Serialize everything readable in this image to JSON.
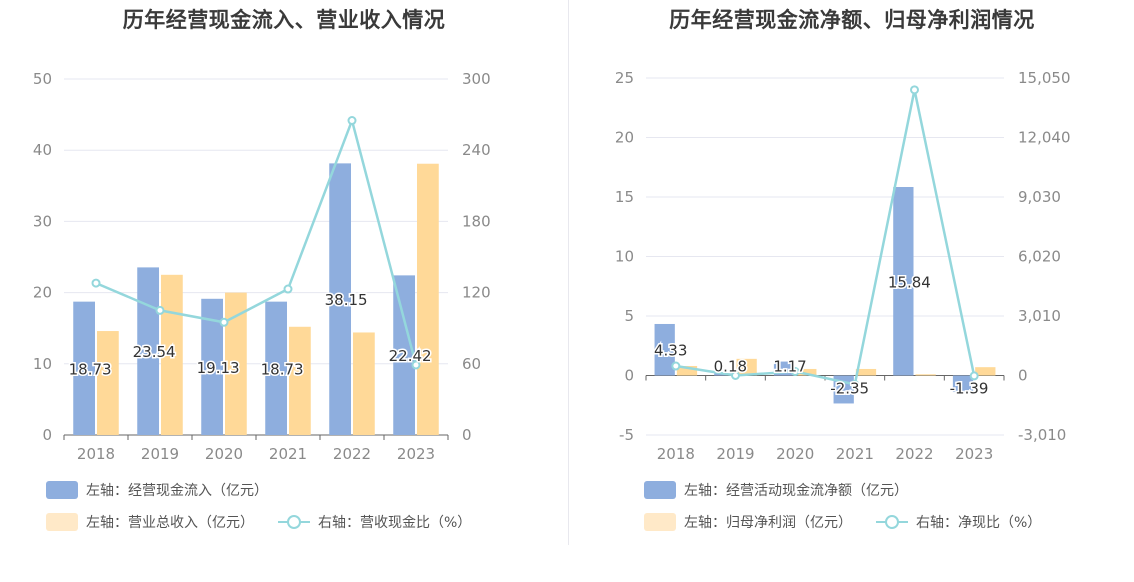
{
  "colors": {
    "bar_a": "#8eaede",
    "bar_b": "#ffd998",
    "line": "#94d7dc",
    "grid": "#e6e7f0",
    "axis_text": "#8a8a8a"
  },
  "chart_data": [
    {
      "type": "bar",
      "title": "历年经营现金流入、营业收入情况",
      "categories": [
        "2018",
        "2019",
        "2020",
        "2021",
        "2022",
        "2023"
      ],
      "left_axis": {
        "min": 0,
        "max": 50,
        "ticks": [
          "0",
          "10",
          "20",
          "30",
          "40",
          "50"
        ]
      },
      "right_axis": {
        "min": 0,
        "max": 300,
        "ticks": [
          "0",
          "60",
          "120",
          "180",
          "240",
          "300"
        ]
      },
      "series": [
        {
          "name": "左轴：经营现金流入（亿元）",
          "kind": "bar",
          "axis": "left",
          "values": [
            18.73,
            23.54,
            19.13,
            18.73,
            38.15,
            22.42
          ],
          "labels": [
            "18.73",
            "23.54",
            "19.13",
            "18.73",
            "38.15",
            "22.42"
          ]
        },
        {
          "name": "左轴：营业总收入（亿元）",
          "kind": "bar",
          "axis": "left",
          "values": [
            14.6,
            22.5,
            20.0,
            15.2,
            14.4,
            38.1
          ]
        },
        {
          "name": "右轴：营收现金比（%）",
          "kind": "line",
          "axis": "right",
          "values": [
            128,
            105,
            95,
            123,
            265,
            59
          ]
        }
      ],
      "legend": [
        "左轴：经营现金流入（亿元）",
        "左轴：营业总收入（亿元）",
        "右轴：营收现金比（%）"
      ]
    },
    {
      "type": "bar",
      "title": "历年经营现金流净额、归母净利润情况",
      "categories": [
        "2018",
        "2019",
        "2020",
        "2021",
        "2022",
        "2023"
      ],
      "left_axis": {
        "min": -5,
        "max": 25,
        "ticks": [
          "-5",
          "0",
          "5",
          "10",
          "15",
          "20",
          "25"
        ]
      },
      "right_axis": {
        "min": -3010,
        "max": 15050,
        "ticks": [
          "-3,010",
          "0",
          "3,010",
          "6,020",
          "9,030",
          "12,040",
          "15,050"
        ]
      },
      "series": [
        {
          "name": "左轴：经营活动现金流净额（亿元）",
          "kind": "bar",
          "axis": "left",
          "values": [
            4.33,
            0.18,
            1.17,
            -2.35,
            15.84,
            -1.39
          ],
          "labels": [
            "4.33",
            "0.18",
            "1.17",
            "-2.35",
            "15.84",
            "-1.39"
          ]
        },
        {
          "name": "左轴：归母净利润（亿元）",
          "kind": "bar",
          "axis": "left",
          "values": [
            0.8,
            1.4,
            0.55,
            0.55,
            0.1,
            0.7
          ]
        },
        {
          "name": "右轴：净现比（%）",
          "kind": "line",
          "axis": "right",
          "values": [
            480,
            0,
            200,
            -450,
            14450,
            -20
          ]
        }
      ],
      "legend": [
        "左轴：经营活动现金流净额（亿元）",
        "左轴：归母净利润（亿元）",
        "右轴：净现比（%）"
      ]
    }
  ]
}
